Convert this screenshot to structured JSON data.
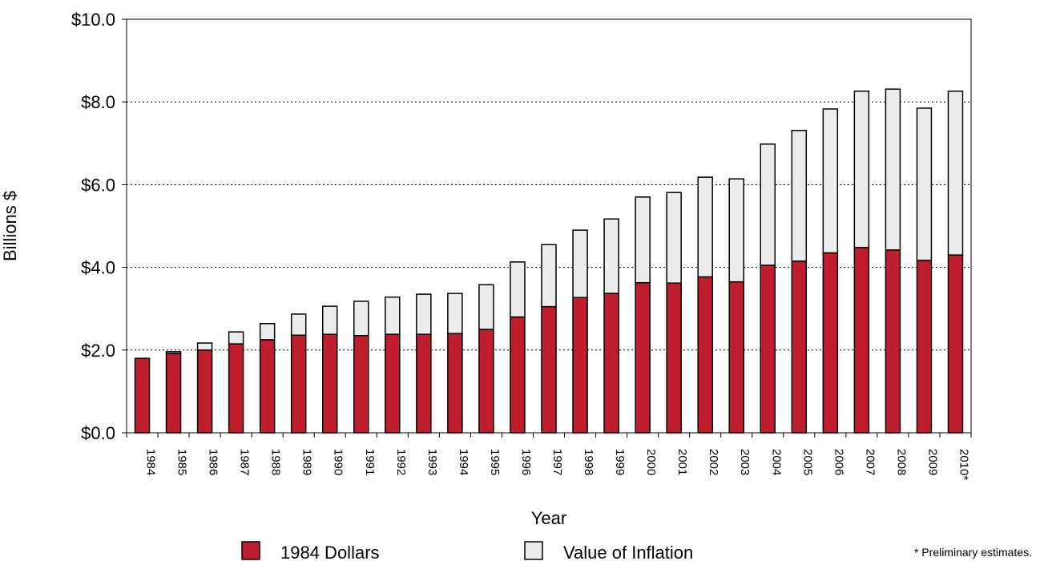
{
  "chart_data": {
    "type": "stacked_bar",
    "y_label": "Billions $",
    "x_label": "Year",
    "footnote": "* Preliminary estimates.",
    "categories": [
      "1984",
      "1985",
      "1986",
      "1987",
      "1988",
      "1989",
      "1990",
      "1991",
      "1992",
      "1993",
      "1994",
      "1995",
      "1996",
      "1997",
      "1998",
      "1999",
      "2000",
      "2001",
      "2002",
      "2003",
      "2004",
      "2005",
      "2006",
      "2007",
      "2008",
      "2009",
      "2010*"
    ],
    "series": [
      {
        "name": "1984 Dollars",
        "color": "#be1e2d",
        "values": [
          1.8,
          1.92,
          2.0,
          2.15,
          2.25,
          2.36,
          2.38,
          2.35,
          2.38,
          2.38,
          2.4,
          2.5,
          2.8,
          3.05,
          3.27,
          3.37,
          3.63,
          3.62,
          3.77,
          3.65,
          4.05,
          4.15,
          4.35,
          4.48,
          4.42,
          4.17,
          4.3
        ]
      },
      {
        "name": "Value of Inflation",
        "color": "#ececec",
        "values": [
          0,
          0.04,
          0.17,
          0.29,
          0.39,
          0.51,
          0.68,
          0.83,
          0.9,
          0.97,
          0.97,
          1.08,
          1.33,
          1.5,
          1.63,
          1.8,
          2.07,
          2.19,
          2.41,
          2.49,
          2.93,
          3.16,
          3.48,
          3.78,
          3.89,
          3.68,
          3.96
        ]
      }
    ],
    "ylim": [
      0,
      10
    ],
    "yticks": [
      {
        "value": 0,
        "label": "$0.0"
      },
      {
        "value": 2,
        "label": "$2.0"
      },
      {
        "value": 4,
        "label": "$4.0"
      },
      {
        "value": 6,
        "label": "$6.0"
      },
      {
        "value": 8,
        "label": "$8.0"
      },
      {
        "value": 10,
        "label": "$10.0"
      }
    ],
    "grid": true
  }
}
